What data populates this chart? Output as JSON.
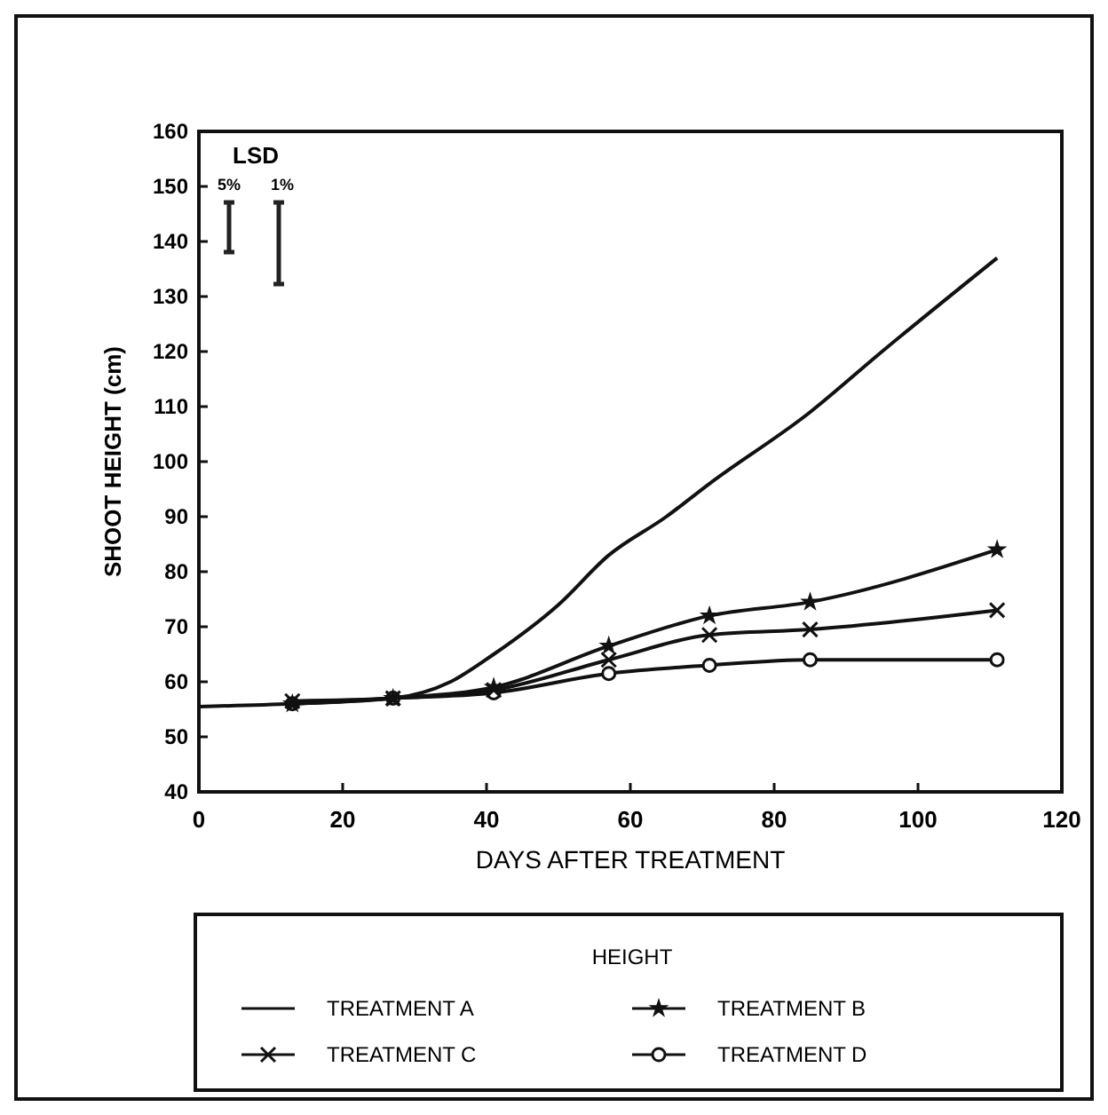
{
  "chart_data": {
    "type": "line",
    "xlabel": "DAYS AFTER TREATMENT",
    "ylabel": "SHOOT HEIGHT (cm)",
    "legend_title": "HEIGHT",
    "legend": "bottom",
    "xlim": [
      0,
      120
    ],
    "ylim": [
      40,
      160
    ],
    "xticks": [
      0,
      20,
      40,
      60,
      80,
      100,
      120
    ],
    "yticks": [
      40,
      50,
      60,
      70,
      80,
      90,
      100,
      110,
      120,
      130,
      140,
      150,
      160
    ],
    "grid": false,
    "annotations": [
      "LSD",
      "5%",
      "1%"
    ],
    "series": [
      {
        "name": "TREATMENT A",
        "color": "#111111",
        "marker": "none",
        "x": [
          0,
          13,
          27,
          35,
          41,
          50,
          57,
          65,
          71,
          85,
          95,
          111
        ],
        "values": [
          55.5,
          56,
          57,
          60,
          65,
          74,
          83,
          90,
          96,
          109,
          120,
          137
        ]
      },
      {
        "name": "TREATMENT B",
        "color": "#111111",
        "marker": "star",
        "x": [
          13,
          27,
          41,
          57,
          71,
          85,
          111
        ],
        "values": [
          56,
          57,
          59,
          66.5,
          72,
          74.5,
          84
        ]
      },
      {
        "name": "TREATMENT C",
        "color": "#111111",
        "marker": "cross",
        "x": [
          13,
          27,
          41,
          57,
          71,
          85,
          111
        ],
        "values": [
          56.5,
          57,
          58.5,
          64,
          68.5,
          69.5,
          73
        ]
      },
      {
        "name": "TREATMENT D",
        "color": "#111111",
        "marker": "circle",
        "x": [
          13,
          27,
          41,
          57,
          71,
          85,
          111
        ],
        "values": [
          56,
          57,
          58,
          61.5,
          63,
          64,
          64
        ]
      }
    ]
  }
}
